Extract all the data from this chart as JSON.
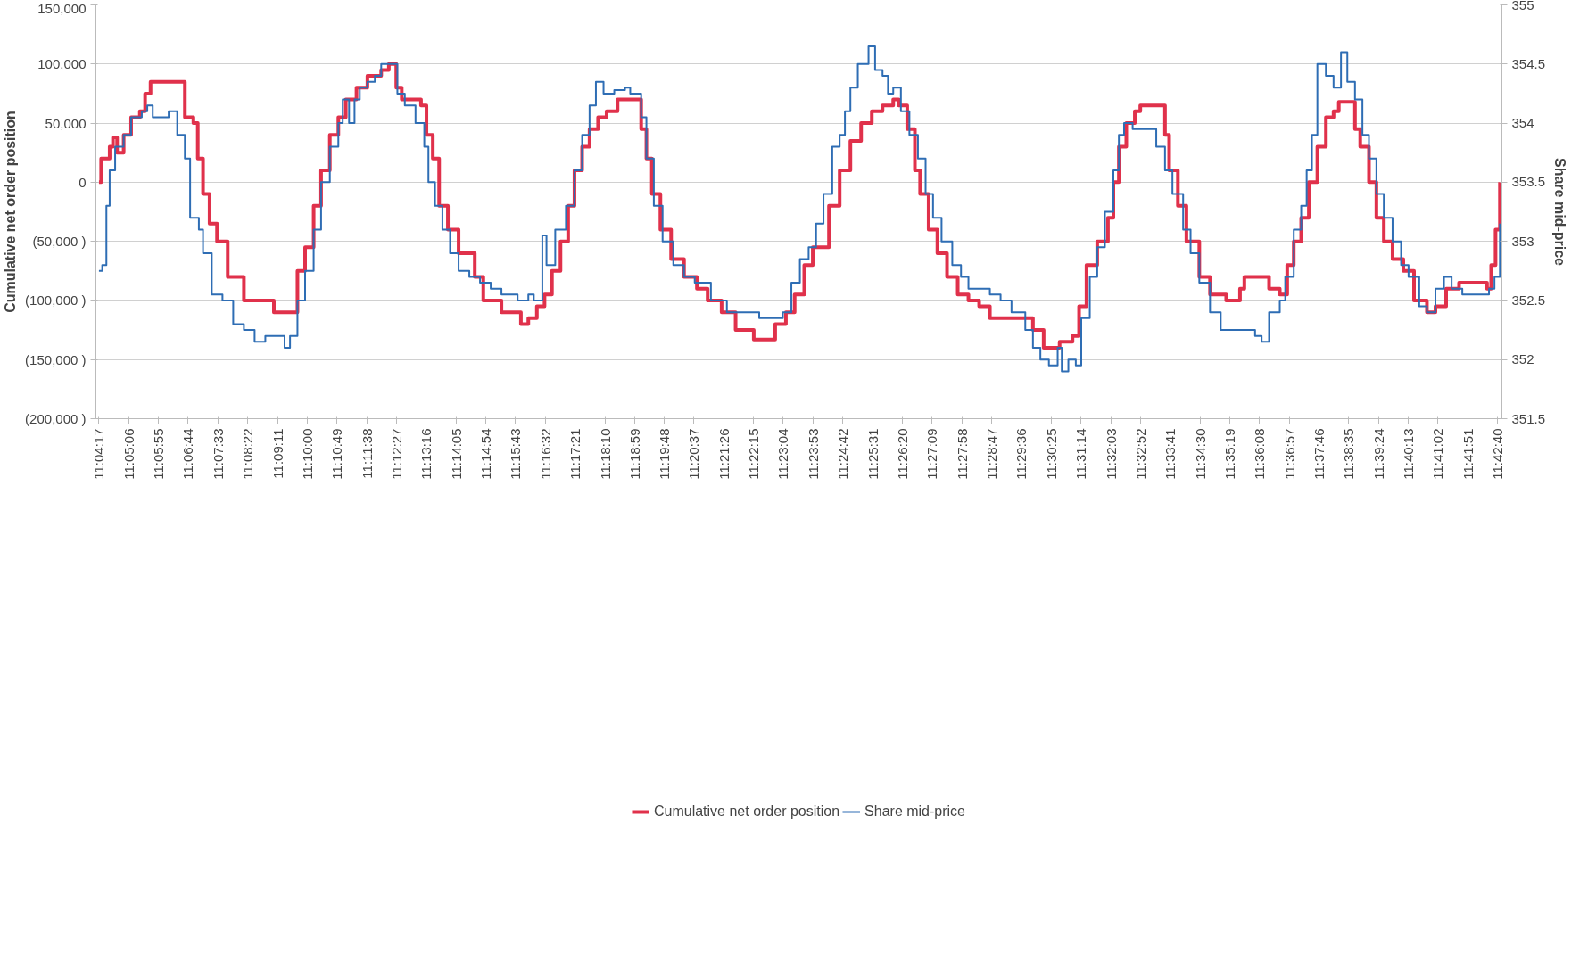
{
  "chart_data": {
    "type": "step",
    "ylabel": "Cumulative net order position",
    "y2label": "Share mid-price",
    "xlim": [
      11.07,
      11.7131
    ],
    "ylim": [
      -200000,
      150000
    ],
    "y2lim": [
      351.5,
      355
    ],
    "yticks": [
      {
        "value": 150000,
        "label": "150,000"
      },
      {
        "value": 100000,
        "label": "100,000"
      },
      {
        "value": 50000,
        "label": "50,000"
      },
      {
        "value": 0,
        "label": "0"
      },
      {
        "value": -50000,
        "label": "(50,000 )"
      },
      {
        "value": -100000,
        "label": "(100,000 )"
      },
      {
        "value": -150000,
        "label": "(150,000 )"
      },
      {
        "value": -200000,
        "label": "(200,000 )"
      }
    ],
    "y2ticks": [
      355,
      354.5,
      354,
      353.5,
      353,
      352.5,
      352,
      351.5
    ],
    "xticks": [
      {
        "value": 11.0714,
        "label": "11:04:17"
      },
      {
        "value": 11.085,
        "label": "11:05:06"
      },
      {
        "value": 11.0986,
        "label": "11:05:55"
      },
      {
        "value": 11.1122,
        "label": "11:06:44"
      },
      {
        "value": 11.1258,
        "label": "11:07:33"
      },
      {
        "value": 11.1394,
        "label": "11:08:22"
      },
      {
        "value": 11.1531,
        "label": "11:09:11"
      },
      {
        "value": 11.1667,
        "label": "11:10:00"
      },
      {
        "value": 11.1803,
        "label": "11:10:49"
      },
      {
        "value": 11.1939,
        "label": "11:11:38"
      },
      {
        "value": 11.2075,
        "label": "11:12:27"
      },
      {
        "value": 11.2211,
        "label": "11:13:16"
      },
      {
        "value": 11.2347,
        "label": "11:14:05"
      },
      {
        "value": 11.2483,
        "label": "11:14:54"
      },
      {
        "value": 11.2619,
        "label": "11:15:43"
      },
      {
        "value": 11.2756,
        "label": "11:16:32"
      },
      {
        "value": 11.2892,
        "label": "11:17:21"
      },
      {
        "value": 11.3028,
        "label": "11:18:10"
      },
      {
        "value": 11.3164,
        "label": "11:18:59"
      },
      {
        "value": 11.33,
        "label": "11:19:48"
      },
      {
        "value": 11.3436,
        "label": "11:20:37"
      },
      {
        "value": 11.3572,
        "label": "11:21:26"
      },
      {
        "value": 11.3708,
        "label": "11:22:15"
      },
      {
        "value": 11.3844,
        "label": "11:23:04"
      },
      {
        "value": 11.3981,
        "label": "11:23:53"
      },
      {
        "value": 11.4117,
        "label": "11:24:42"
      },
      {
        "value": 11.4253,
        "label": "11:25:31"
      },
      {
        "value": 11.4389,
        "label": "11:26:20"
      },
      {
        "value": 11.4525,
        "label": "11:27:09"
      },
      {
        "value": 11.4661,
        "label": "11:27:58"
      },
      {
        "value": 11.4797,
        "label": "11:28:47"
      },
      {
        "value": 11.4933,
        "label": "11:29:36"
      },
      {
        "value": 11.5069,
        "label": "11:30:25"
      },
      {
        "value": 11.5206,
        "label": "11:31:14"
      },
      {
        "value": 11.5342,
        "label": "11:32:03"
      },
      {
        "value": 11.5478,
        "label": "11:32:52"
      },
      {
        "value": 11.5614,
        "label": "11:33:41"
      },
      {
        "value": 11.575,
        "label": "11:34:30"
      },
      {
        "value": 11.5886,
        "label": "11:35:19"
      },
      {
        "value": 11.6022,
        "label": "11:36:08"
      },
      {
        "value": 11.6158,
        "label": "11:36:57"
      },
      {
        "value": 11.6294,
        "label": "11:37:46"
      },
      {
        "value": 11.6431,
        "label": "11:38:35"
      },
      {
        "value": 11.6567,
        "label": "11:39:24"
      },
      {
        "value": 11.6703,
        "label": "11:40:13"
      },
      {
        "value": 11.6839,
        "label": "11:41:02"
      },
      {
        "value": 11.6975,
        "label": "11:41:51"
      },
      {
        "value": 11.7111,
        "label": "11:42:40"
      }
    ],
    "grid": "y",
    "legend": "bottom",
    "line_style": "solid",
    "marker": "none",
    "series": [
      {
        "name": "Cumulative net order position",
        "color": "#e0314b",
        "x": [
          11.0714,
          11.0724,
          11.0763,
          11.0778,
          11.0797,
          11.0827,
          11.0861,
          11.0901,
          11.0925,
          11.095,
          11.1092,
          11.1107,
          11.1146,
          11.1166,
          11.119,
          11.122,
          11.1254,
          11.1303,
          11.1377,
          11.15,
          11.1514,
          11.1608,
          11.1622,
          11.1657,
          11.1696,
          11.173,
          11.177,
          11.1809,
          11.1843,
          11.1892,
          11.1942,
          11.2005,
          11.204,
          11.2074,
          11.2099,
          11.2187,
          11.2212,
          11.2241,
          11.227,
          11.231,
          11.2359,
          11.2433,
          11.2472,
          11.2555,
          11.2644,
          11.2678,
          11.2717,
          11.2752,
          11.2786,
          11.2825,
          11.286,
          11.2889,
          11.2924,
          11.2958,
          11.2997,
          11.3036,
          11.3086,
          11.3169,
          11.3194,
          11.3218,
          11.3243,
          11.3282,
          11.3331,
          11.339,
          11.3449,
          11.3498,
          11.3562,
          11.3626,
          11.3709,
          11.3793,
          11.3807,
          11.3856,
          11.3896,
          11.394,
          11.3979,
          11.4053,
          11.4102,
          11.4151,
          11.42,
          11.4249,
          11.4298,
          11.4347,
          11.4372,
          11.4411,
          11.4446,
          11.447,
          11.4509,
          11.4549,
          11.4593,
          11.4642,
          11.4691,
          11.474,
          11.4789,
          11.4863,
          11.4961,
          11.4986,
          11.5035,
          11.5108,
          11.5167,
          11.5197,
          11.5231,
          11.528,
          11.5329,
          11.5354,
          11.5379,
          11.5413,
          11.5452,
          11.5477,
          11.5575,
          11.559,
          11.5609,
          11.5649,
          11.5688,
          11.5747,
          11.5796,
          11.587,
          11.5933,
          11.5953,
          11.6051,
          11.6066,
          11.6115,
          11.6149,
          11.6179,
          11.6213,
          11.6248,
          11.6287,
          11.6326,
          11.6361,
          11.6385,
          11.6434,
          11.6459,
          11.6483,
          11.6523,
          11.6557,
          11.6591,
          11.6631,
          11.668,
          11.6729,
          11.6788,
          11.6827,
          11.6876,
          11.6935,
          11.7023,
          11.7063,
          11.7082,
          11.7102,
          11.7122
        ],
        "values": [
          0,
          20000,
          30000,
          38000,
          25000,
          40000,
          55000,
          60000,
          75000,
          85000,
          85000,
          55000,
          50000,
          20000,
          -10000,
          -35000,
          -50000,
          -80000,
          -100000,
          -100000,
          -110000,
          -110000,
          -75000,
          -55000,
          -20000,
          10000,
          40000,
          55000,
          70000,
          80000,
          90000,
          95000,
          100000,
          80000,
          70000,
          65000,
          40000,
          20000,
          -20000,
          -40000,
          -60000,
          -80000,
          -100000,
          -110000,
          -120000,
          -115000,
          -105000,
          -95000,
          -75000,
          -50000,
          -20000,
          10000,
          30000,
          45000,
          55000,
          60000,
          70000,
          70000,
          45000,
          20000,
          -10000,
          -40000,
          -65000,
          -80000,
          -90000,
          -100000,
          -110000,
          -125000,
          -133000,
          -133000,
          -120000,
          -110000,
          -95000,
          -70000,
          -55000,
          -20000,
          10000,
          35000,
          50000,
          60000,
          65000,
          70000,
          65000,
          45000,
          10000,
          -10000,
          -40000,
          -60000,
          -80000,
          -95000,
          -100000,
          -105000,
          -115000,
          -115000,
          -115000,
          -125000,
          -140000,
          -135000,
          -130000,
          -105000,
          -70000,
          -50000,
          -30000,
          0,
          30000,
          50000,
          60000,
          65000,
          65000,
          40000,
          10000,
          -20000,
          -50000,
          -80000,
          -95000,
          -100000,
          -90000,
          -80000,
          -80000,
          -90000,
          -95000,
          -70000,
          -50000,
          -30000,
          0,
          30000,
          55000,
          60000,
          68000,
          68000,
          45000,
          30000,
          0,
          -30000,
          -50000,
          -65000,
          -75000,
          -100000,
          -110000,
          -105000,
          -90000,
          -85000,
          -85000,
          -90000,
          -70000,
          -40000,
          0
        ]
      },
      {
        "name": "Share mid-price",
        "color": "#2e6db4",
        "axis": "y2",
        "x": [
          11.0714,
          11.0729,
          11.0748,
          11.0763,
          11.0788,
          11.0827,
          11.0861,
          11.091,
          11.0935,
          11.096,
          11.1009,
          11.1033,
          11.1072,
          11.1107,
          11.1131,
          11.1171,
          11.119,
          11.123,
          11.1279,
          11.1328,
          11.1377,
          11.1426,
          11.1475,
          11.1534,
          11.1563,
          11.1588,
          11.1622,
          11.1657,
          11.1696,
          11.173,
          11.177,
          11.1809,
          11.1829,
          11.1858,
          11.1883,
          11.1907,
          11.1942,
          11.1976,
          11.2005,
          11.2064,
          11.2079,
          11.2113,
          11.2162,
          11.2202,
          11.2221,
          11.2251,
          11.2285,
          11.232,
          11.2359,
          11.2408,
          11.2457,
          11.2506,
          11.2555,
          11.2629,
          11.2678,
          11.2703,
          11.2742,
          11.2761,
          11.2801,
          11.285,
          11.2889,
          11.2924,
          11.2958,
          11.2987,
          11.3022,
          11.3071,
          11.312,
          11.3144,
          11.3194,
          11.3218,
          11.3252,
          11.3292,
          11.3341,
          11.339,
          11.3439,
          11.3513,
          11.3586,
          11.366,
          11.3734,
          11.3807,
          11.3842,
          11.3881,
          11.392,
          11.396,
          11.3994,
          11.4028,
          11.4068,
          11.4102,
          11.4126,
          11.4151,
          11.4185,
          11.4215,
          11.4234,
          11.4264,
          11.4298,
          11.4323,
          11.4347,
          11.4382,
          11.4421,
          11.446,
          11.4495,
          11.4529,
          11.4568,
          11.4617,
          11.4657,
          11.4691,
          11.474,
          11.4789,
          11.4838,
          11.4888,
          11.4951,
          11.4986,
          11.502,
          11.5059,
          11.5099,
          11.5118,
          11.5148,
          11.5182,
          11.5207,
          11.5246,
          11.528,
          11.5315,
          11.5354,
          11.5379,
          11.5403,
          11.5442,
          11.5526,
          11.555,
          11.559,
          11.5624,
          11.5673,
          11.5707,
          11.5747,
          11.5796,
          11.5845,
          11.5943,
          11.6002,
          11.6032,
          11.6066,
          11.6115,
          11.614,
          11.6179,
          11.6213,
          11.6238,
          11.6262,
          11.6287,
          11.6326,
          11.6361,
          11.6395,
          11.6424,
          11.6459,
          11.6493,
          11.6523,
          11.6557,
          11.6591,
          11.6631,
          11.667,
          11.6704,
          11.6753,
          11.6788,
          11.6827,
          11.6866,
          11.6901,
          11.695,
          11.7023,
          11.7072,
          11.7097,
          11.7122
        ],
        "values": [
          352.75,
          352.8,
          353.3,
          353.6,
          353.8,
          353.9,
          354.05,
          354.1,
          354.15,
          354.05,
          354.05,
          354.1,
          353.9,
          353.7,
          353.2,
          353.1,
          352.9,
          352.55,
          352.5,
          352.3,
          352.25,
          352.15,
          352.2,
          352.2,
          352.1,
          352.2,
          352.5,
          352.75,
          353.1,
          353.5,
          353.8,
          354.0,
          354.2,
          354.0,
          354.2,
          354.3,
          354.35,
          354.4,
          354.5,
          354.5,
          354.25,
          354.15,
          354.0,
          353.8,
          353.5,
          353.3,
          353.1,
          352.9,
          352.75,
          352.7,
          352.65,
          352.6,
          352.55,
          352.5,
          352.55,
          352.5,
          353.05,
          352.8,
          353.1,
          353.3,
          353.6,
          353.9,
          354.15,
          354.35,
          354.25,
          354.28,
          354.3,
          354.25,
          354.05,
          353.7,
          353.3,
          353.0,
          352.8,
          352.7,
          352.65,
          352.5,
          352.4,
          352.4,
          352.35,
          352.35,
          352.4,
          352.65,
          352.85,
          352.95,
          353.15,
          353.4,
          353.8,
          353.9,
          354.1,
          354.3,
          354.5,
          354.5,
          354.65,
          354.45,
          354.4,
          354.25,
          354.3,
          354.1,
          353.9,
          353.7,
          353.4,
          353.2,
          353.0,
          352.8,
          352.7,
          352.6,
          352.6,
          352.55,
          352.5,
          352.4,
          352.25,
          352.1,
          352.0,
          351.95,
          352.1,
          351.9,
          352.0,
          351.95,
          352.35,
          352.7,
          352.95,
          353.25,
          353.6,
          353.9,
          354.0,
          353.95,
          353.95,
          353.8,
          353.6,
          353.4,
          353.1,
          352.9,
          352.65,
          352.4,
          352.25,
          352.25,
          352.2,
          352.15,
          352.4,
          352.5,
          352.7,
          353.1,
          353.3,
          353.6,
          353.9,
          354.5,
          354.4,
          354.3,
          354.6,
          354.35,
          354.2,
          353.9,
          353.7,
          353.4,
          353.2,
          353.0,
          352.8,
          352.7,
          352.45,
          352.4,
          352.6,
          352.7,
          352.6,
          352.55,
          352.55,
          352.6,
          352.7,
          353.15
        ]
      }
    ]
  }
}
